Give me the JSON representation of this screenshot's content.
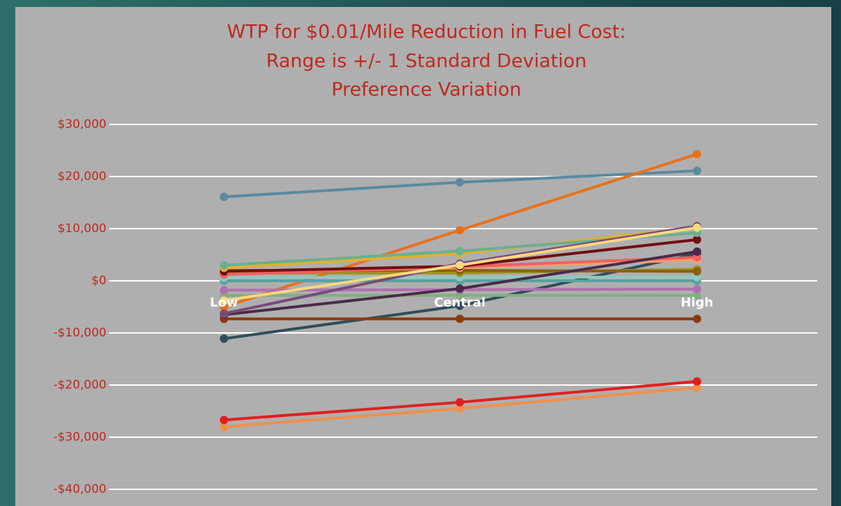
{
  "chart_data": {
    "type": "line",
    "title": [
      "WTP for $0.01/Mile Reduction in Fuel Cost:",
      "Range is +/- 1 Standard Deviation",
      "Preference Variation"
    ],
    "categories": [
      "Low",
      "Central",
      "High"
    ],
    "ylim": [
      -40000,
      30000
    ],
    "yticks": [
      {
        "value": -40000,
        "label": "-$40,000"
      },
      {
        "value": -30000,
        "label": "-$30,000"
      },
      {
        "value": -20000,
        "label": "-$20,000"
      },
      {
        "value": -10000,
        "label": "-$10,000"
      },
      {
        "value": 0,
        "label": "$0"
      },
      {
        "value": 10000,
        "label": "$10,000"
      },
      {
        "value": 20000,
        "label": "$20,000"
      },
      {
        "value": 30000,
        "label": "$30,000"
      }
    ],
    "grid": true,
    "series": [
      {
        "color": "#5a8aa0",
        "values": [
          16100,
          18900,
          21100
        ]
      },
      {
        "color": "#e8701a",
        "values": [
          -5000,
          9700,
          24300
        ]
      },
      {
        "color": "#2f4d5a",
        "values": [
          -11100,
          -4800,
          5200
        ]
      },
      {
        "color": "#f0904a",
        "values": [
          -28000,
          -24500,
          -20500
        ]
      },
      {
        "color": "#e02020",
        "values": [
          -26700,
          -23300,
          -19300
        ]
      },
      {
        "color": "#8b3a10",
        "values": [
          -7300,
          -7300,
          -7300
        ]
      },
      {
        "color": "#80b080",
        "values": [
          -2800,
          -2800,
          -2800
        ]
      },
      {
        "color": "#b070b0",
        "values": [
          -1800,
          -1700,
          -1600
        ]
      },
      {
        "color": "#5aa0a0",
        "values": [
          0,
          0,
          0
        ]
      },
      {
        "color": "#90c8c0",
        "values": [
          600,
          700,
          700
        ]
      },
      {
        "color": "#a09020",
        "values": [
          1500,
          1500,
          2200
        ]
      },
      {
        "color": "#8a6010",
        "values": [
          2000,
          2000,
          1800
        ]
      },
      {
        "color": "#f0a070",
        "values": [
          1500,
          2500,
          4000
        ]
      },
      {
        "color": "#f06060",
        "values": [
          1200,
          2700,
          4500
        ]
      },
      {
        "color": "#4a2a4a",
        "values": [
          -6500,
          -1500,
          5600
        ]
      },
      {
        "color": "#701010",
        "values": [
          1800,
          2800,
          7900
        ]
      },
      {
        "color": "#e0b030",
        "values": [
          2500,
          5200,
          10200
        ]
      },
      {
        "color": "#6ab090",
        "values": [
          3000,
          5700,
          9200
        ]
      },
      {
        "color": "#7a4a7a",
        "values": [
          -6300,
          3300,
          10500
        ]
      },
      {
        "color": "#f8d880",
        "values": [
          -3800,
          3000,
          10200
        ]
      }
    ]
  }
}
